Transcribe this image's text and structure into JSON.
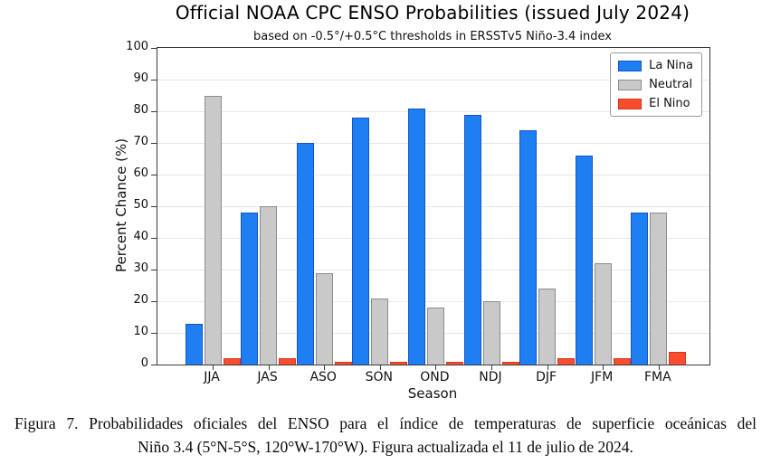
{
  "title": "Official NOAA CPC ENSO Probabilities (issued July 2024)",
  "subtitle": "based on -0.5°/+0.5°C thresholds in ERSSTv5 Niño-3.4 index",
  "chart_data": {
    "type": "bar",
    "categories": [
      "JJA",
      "JAS",
      "ASO",
      "SON",
      "OND",
      "NDJ",
      "DJF",
      "JFM",
      "FMA"
    ],
    "series": [
      {
        "name": "La Nina",
        "color": "#1E7FF2",
        "edge_color": "#1553C6",
        "values": [
          13,
          48,
          70,
          78,
          81,
          79,
          74,
          66,
          48
        ]
      },
      {
        "name": "Neutral",
        "color": "#C9C9C9",
        "edge_color": "#8C8C8C",
        "values": [
          85,
          50,
          29,
          21,
          18,
          20,
          24,
          32,
          48
        ]
      },
      {
        "name": "El Nino",
        "color": "#F94D30",
        "edge_color": "#D3371C",
        "values": [
          2,
          2,
          1,
          1,
          1,
          1,
          2,
          2,
          4
        ]
      }
    ],
    "xlabel": "Season",
    "ylabel": "Percent Chance (%)",
    "ylim": [
      0,
      100
    ],
    "yticks": [
      0,
      10,
      20,
      30,
      40,
      50,
      60,
      70,
      80,
      90,
      100
    ],
    "grid": true,
    "legend_position": "top-right"
  },
  "caption": {
    "line1": "Figura 7. Probabilidades oficiales del ENSO para el índice de temperaturas de superficie oceánicas del",
    "line2": "Niño 3.4 (5°N-5°S, 120°W-170°W). Figura actualizada el 11 de julio de 2024."
  }
}
